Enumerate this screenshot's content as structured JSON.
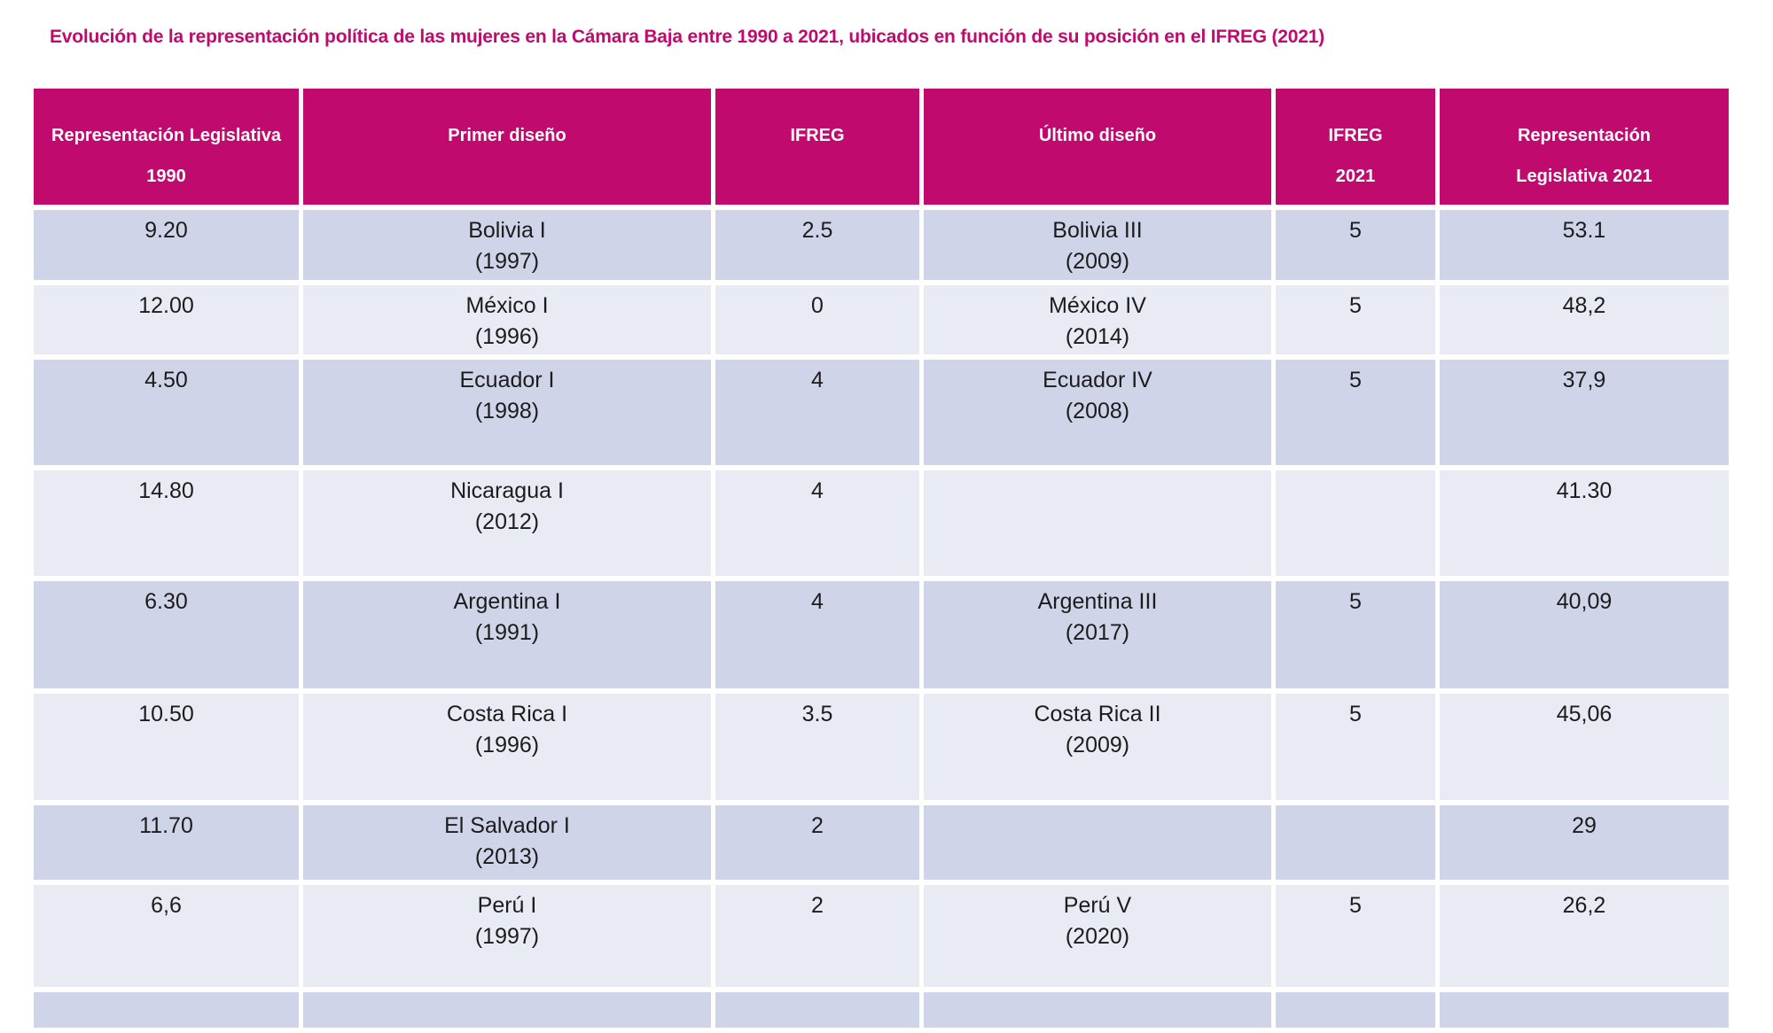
{
  "page_title": "Evolución de la representación política de las mujeres en la Cámara Baja entre 1990 a 2021, ubicados en función de su posición en el IFREG (2021)",
  "colors": {
    "accent_magenta": "#C00A6E",
    "row_band_dark": "#D0D4E8",
    "row_band_light": "#E9EBF4",
    "header_text": "#FFFFFF",
    "cell_text": "#1C1C1C",
    "background": "#FFFFFF"
  },
  "chart_data": {
    "type": "table",
    "title": "Evolución de la representación política de las mujeres en la Cámara Baja entre 1990 a 2021, ubicados en función de su posición en el IFREG (2021)",
    "columns": [
      "Representación Legislativa\n1990",
      "Primer diseño",
      "IFREG",
      "Último diseño",
      "IFREG\n2021",
      "Representación\nLegislativa 2021"
    ],
    "rows": [
      [
        "9.20",
        "Bolivia I\n(1997)",
        "2.5",
        "Bolivia III\n(2009)",
        "5",
        "53.1"
      ],
      [
        "12.00",
        "México I\n(1996)",
        "0",
        "México IV\n(2014)",
        "5",
        "48,2"
      ],
      [
        "4.50",
        "Ecuador I\n(1998)",
        "4",
        "Ecuador IV\n(2008)",
        "5",
        "37,9"
      ],
      [
        "14.80",
        "Nicaragua I\n(2012)",
        "4",
        "",
        "",
        "41.30"
      ],
      [
        "6.30",
        "Argentina I\n(1991)",
        "4",
        "Argentina III\n(2017)",
        "5",
        "40,09"
      ],
      [
        "10.50",
        "Costa Rica I\n(1996)",
        "3.5",
        "Costa Rica II\n(2009)",
        "5",
        "45,06"
      ],
      [
        "11.70",
        "El Salvador I\n(2013)",
        "2",
        "",
        "",
        "29"
      ],
      [
        "6,6",
        "Perú I\n(1997)",
        "2",
        "Perú V\n(2020)",
        "5",
        "26,2"
      ]
    ],
    "layout_hints": {
      "banded_rows": true,
      "header_position": "top",
      "last_row_clipped_at_bottom": true
    }
  }
}
